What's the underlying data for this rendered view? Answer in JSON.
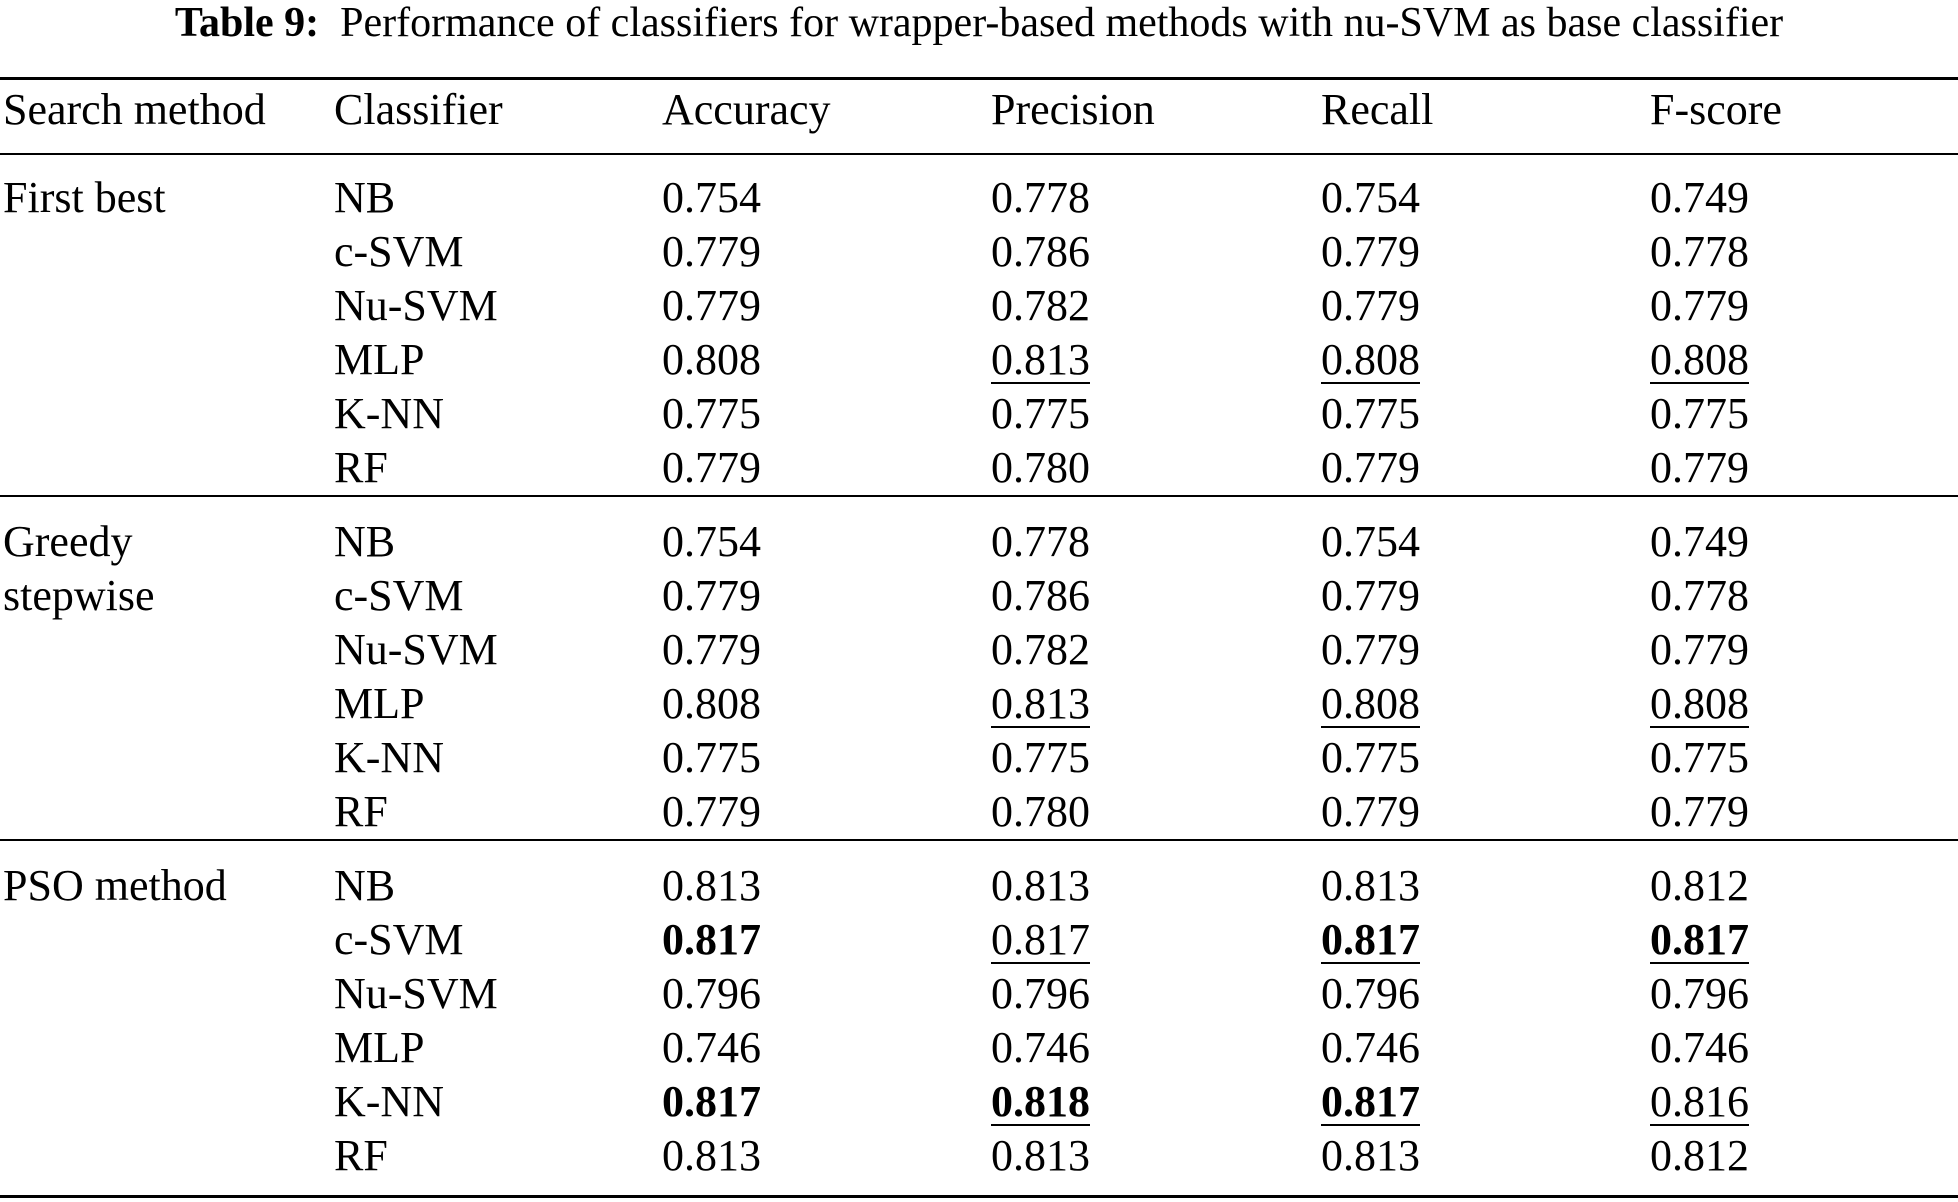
{
  "caption": {
    "label": "Table 9:",
    "text": "Performance of classifiers for wrapper-based methods with nu-SVM as base classifier"
  },
  "header": [
    "Search method",
    "Classifier",
    "Accuracy",
    "Precision",
    "Recall",
    "F-score"
  ],
  "groups": [
    {
      "method_lines": [
        "First best"
      ],
      "rows": [
        {
          "classifier": "NB",
          "accuracy": "0.754",
          "precision": "0.778",
          "recall": "0.754",
          "fscore": "0.749"
        },
        {
          "classifier": "c-SVM",
          "accuracy": "0.779",
          "precision": "0.786",
          "recall": "0.779",
          "fscore": "0.778"
        },
        {
          "classifier": "Nu-SVM",
          "accuracy": "0.779",
          "precision": "0.782",
          "recall": "0.779",
          "fscore": "0.779"
        },
        {
          "classifier": "MLP",
          "accuracy": "0.808",
          "precision": "0.813",
          "recall": "0.808",
          "fscore": "0.808"
        },
        {
          "classifier": "K-NN",
          "accuracy": "0.775",
          "precision": "0.775",
          "recall": "0.775",
          "fscore": "0.775"
        },
        {
          "classifier": "RF",
          "accuracy": "0.779",
          "precision": "0.780",
          "recall": "0.779",
          "fscore": "0.779"
        }
      ]
    },
    {
      "method_lines": [
        "Greedy",
        "stepwise"
      ],
      "rows": [
        {
          "classifier": "NB",
          "accuracy": "0.754",
          "precision": "0.778",
          "recall": "0.754",
          "fscore": "0.749"
        },
        {
          "classifier": "c-SVM",
          "accuracy": "0.779",
          "precision": "0.786",
          "recall": "0.779",
          "fscore": "0.778"
        },
        {
          "classifier": "Nu-SVM",
          "accuracy": "0.779",
          "precision": "0.782",
          "recall": "0.779",
          "fscore": "0.779"
        },
        {
          "classifier": "MLP",
          "accuracy": "0.808",
          "precision": "0.813",
          "recall": "0.808",
          "fscore": "0.808"
        },
        {
          "classifier": "K-NN",
          "accuracy": "0.775",
          "precision": "0.775",
          "recall": "0.775",
          "fscore": "0.775"
        },
        {
          "classifier": "RF",
          "accuracy": "0.779",
          "precision": "0.780",
          "recall": "0.779",
          "fscore": "0.779"
        }
      ]
    },
    {
      "method_lines": [
        "PSO method"
      ],
      "rows": [
        {
          "classifier": "NB",
          "accuracy": "0.813",
          "precision": "0.813",
          "recall": "0.813",
          "fscore": "0.812"
        },
        {
          "classifier": "c-SVM",
          "accuracy": "0.817",
          "precision": "0.817",
          "recall": "0.817",
          "fscore": "0.817"
        },
        {
          "classifier": "Nu-SVM",
          "accuracy": "0.796",
          "precision": "0.796",
          "recall": "0.796",
          "fscore": "0.796"
        },
        {
          "classifier": "MLP",
          "accuracy": "0.746",
          "precision": "0.746",
          "recall": "0.746",
          "fscore": "0.746"
        },
        {
          "classifier": "K-NN",
          "accuracy": "0.817",
          "precision": "0.818",
          "recall": "0.817",
          "fscore": "0.816"
        },
        {
          "classifier": "RF",
          "accuracy": "0.813",
          "precision": "0.813",
          "recall": "0.813",
          "fscore": "0.812"
        }
      ]
    }
  ],
  "emphasis": {
    "bold": [
      "g2.r1.accuracy",
      "g2.r1.recall",
      "g2.r1.fscore",
      "g2.r4.accuracy",
      "g2.r4.precision",
      "g2.r4.recall"
    ],
    "underline": [
      "g0.r3.precision",
      "g0.r3.recall",
      "g0.r3.fscore",
      "g1.r3.precision",
      "g1.r3.recall",
      "g1.r3.fscore",
      "g2.r1.precision",
      "g2.r1.recall",
      "g2.r1.fscore",
      "g2.r4.precision",
      "g2.r4.recall",
      "g2.r4.fscore"
    ]
  }
}
